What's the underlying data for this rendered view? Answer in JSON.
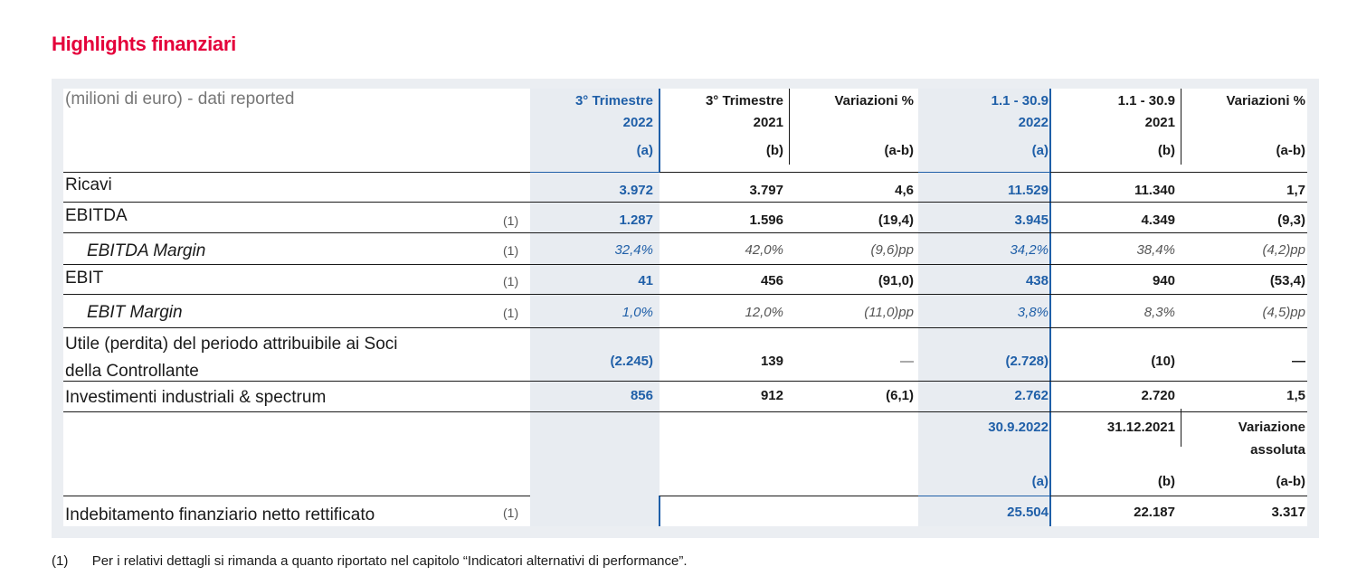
{
  "title": "Highlights finanziari",
  "table": {
    "header_label": "(milioni di euro) - dati reported",
    "columns": [
      {
        "line1": "3° Trimestre",
        "line2": "2022",
        "line3": "(a)"
      },
      {
        "line1": "3° Trimestre",
        "line2": "2021",
        "line3": "(b)"
      },
      {
        "line1": "Variazioni %",
        "line2": "",
        "line3": "(a-b)"
      },
      {
        "line1": "1.1 - 30.9",
        "line2": "2022",
        "line3": "(a)"
      },
      {
        "line1": "1.1 - 30.9",
        "line2": "2021",
        "line3": "(b)"
      },
      {
        "line1": "Variazioni %",
        "line2": "",
        "line3": "(a-b)"
      }
    ],
    "rows": [
      {
        "label": "Ricavi",
        "note": "",
        "values": [
          "3.972",
          "3.797",
          "4,6",
          "11.529",
          "11.340",
          "1,7"
        ]
      },
      {
        "label": "EBITDA",
        "note": "(1)",
        "values": [
          "1.287",
          "1.596",
          "(19,4)",
          "3.945",
          "4.349",
          "(9,3)"
        ]
      },
      {
        "label": "EBITDA Margin",
        "note": "(1)",
        "values": [
          "32,4%",
          "42,0%",
          "(9,6)pp",
          "34,2%",
          "38,4%",
          "(4,2)pp"
        ]
      },
      {
        "label": "EBIT",
        "note": "(1)",
        "values": [
          "41",
          "456",
          "(91,0)",
          "438",
          "940",
          "(53,4)"
        ]
      },
      {
        "label": "EBIT Margin",
        "note": "(1)",
        "values": [
          "1,0%",
          "12,0%",
          "(11,0)pp",
          "3,8%",
          "8,3%",
          "(4,5)pp"
        ]
      },
      {
        "label_line1": "Utile (perdita) del periodo attribuibile ai Soci",
        "label_line2": "della Controllante",
        "values": [
          "(2.245)",
          "139",
          "—",
          "(2.728)",
          "(10)",
          "—"
        ]
      },
      {
        "label": "Investimenti industriali & spectrum",
        "note": "",
        "values": [
          "856",
          "912",
          "(6,1)",
          "2.762",
          "2.720",
          "1,5"
        ]
      }
    ],
    "debt_header": {
      "col1": "30.9.2022",
      "col1_sub": "(a)",
      "col2": "31.12.2021",
      "col2_sub": "(b)",
      "col3_line1": "Variazione",
      "col3_line2": "assoluta",
      "col3_sub": "(a-b)"
    },
    "debt_row": {
      "label": "Indebitamento finanziario netto rettificato",
      "note": "(1)",
      "values": [
        "25.504",
        "22.187",
        "3.317"
      ]
    }
  },
  "footnote": {
    "marker": "(1)",
    "text": "Per i relativi dettagli si rimanda a quanto riportato nel capitolo “Indicatori alternativi di performance”."
  }
}
